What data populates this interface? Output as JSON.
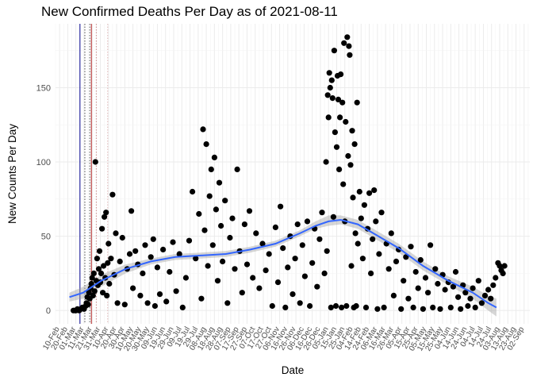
{
  "chart_data": {
    "type": "scatter",
    "title": "New Confirmed Deaths Per Day as of 2021-08-11",
    "xlabel": "Date",
    "ylabel": "New Counts Per Day",
    "x_range": [
      "2020-02-05",
      "2021-09-09"
    ],
    "ylim": [
      -9,
      193
    ],
    "y_ticks": [
      0,
      50,
      100,
      150
    ],
    "x_tick_labels": [
      "10-Feb",
      "20-Feb",
      "01-Mar",
      "11-Mar",
      "21-Mar",
      "31-Mar",
      "10-Apr",
      "20-Apr",
      "30-Apr",
      "10-May",
      "20-May",
      "30-May",
      "09-Jun",
      "19-Jun",
      "29-Jun",
      "09-Jul",
      "19-Jul",
      "29-Jul",
      "08-Aug",
      "18-Aug",
      "28-Aug",
      "07-Sep",
      "17-Sep",
      "27-Sep",
      "07-Oct",
      "17-Oct",
      "27-Oct",
      "06-Nov",
      "16-Nov",
      "26-Nov",
      "06-Dec",
      "16-Dec",
      "26-Dec",
      "05-Jan",
      "15-Jan",
      "25-Jan",
      "04-Feb",
      "14-Feb",
      "24-Feb",
      "06-Mar",
      "16-Mar",
      "26-Mar",
      "05-Apr",
      "15-Apr",
      "25-Apr",
      "05-May",
      "15-May",
      "25-May",
      "04-Jun",
      "14-Jun",
      "24-Jun",
      "04-Jul",
      "14-Jul",
      "24-Jul",
      "03-Aug",
      "13-Aug",
      "23-Aug",
      "02-Sep"
    ],
    "x_tick_start": "2020-02-10",
    "x_tick_step_days": 10,
    "reference_lines": [
      {
        "date": "2020-03-06",
        "color": "#00008b",
        "style": "solid"
      },
      {
        "date": "2020-03-12",
        "color": "#555555",
        "style": "dotted"
      },
      {
        "date": "2020-03-18",
        "color": "#555555",
        "style": "dotted"
      },
      {
        "date": "2020-03-20",
        "color": "#b22222",
        "style": "solid"
      },
      {
        "date": "2020-03-26",
        "color": "#c88a8a",
        "style": "dotted"
      },
      {
        "date": "2020-04-09",
        "color": "#e0b8b8",
        "style": "dotted"
      }
    ],
    "series": [
      {
        "type": "points",
        "color": "#000000",
        "points": [
          [
            "2020-02-27",
            0
          ],
          [
            "2020-02-29",
            0
          ],
          [
            "2020-03-01",
            0
          ],
          [
            "2020-03-03",
            1
          ],
          [
            "2020-03-05",
            0
          ],
          [
            "2020-03-07",
            1
          ],
          [
            "2020-03-09",
            2
          ],
          [
            "2020-03-11",
            1
          ],
          [
            "2020-03-13",
            3
          ],
          [
            "2020-03-14",
            5
          ],
          [
            "2020-03-15",
            9
          ],
          [
            "2020-03-16",
            4
          ],
          [
            "2020-03-17",
            12
          ],
          [
            "2020-03-18",
            8
          ],
          [
            "2020-03-19",
            15
          ],
          [
            "2020-03-20",
            18
          ],
          [
            "2020-03-21",
            22
          ],
          [
            "2020-03-22",
            10
          ],
          [
            "2020-03-23",
            25
          ],
          [
            "2020-03-24",
            13
          ],
          [
            "2020-03-25",
            100
          ],
          [
            "2020-03-26",
            20
          ],
          [
            "2020-03-27",
            35
          ],
          [
            "2020-03-28",
            17
          ],
          [
            "2020-03-29",
            28
          ],
          [
            "2020-03-30",
            40
          ],
          [
            "2020-03-31",
            19
          ],
          [
            "2020-04-01",
            25
          ],
          [
            "2020-04-02",
            55
          ],
          [
            "2020-04-03",
            12
          ],
          [
            "2020-04-04",
            30
          ],
          [
            "2020-04-05",
            63
          ],
          [
            "2020-04-06",
            22
          ],
          [
            "2020-04-07",
            66
          ],
          [
            "2020-04-08",
            10
          ],
          [
            "2020-04-09",
            32
          ],
          [
            "2020-04-10",
            45
          ],
          [
            "2020-04-11",
            18
          ],
          [
            "2020-04-13",
            35
          ],
          [
            "2020-04-15",
            78
          ],
          [
            "2020-04-17",
            24
          ],
          [
            "2020-04-19",
            52
          ],
          [
            "2020-04-21",
            5
          ],
          [
            "2020-04-24",
            33
          ],
          [
            "2020-04-27",
            49
          ],
          [
            "2020-04-30",
            4
          ],
          [
            "2020-05-03",
            28
          ],
          [
            "2020-05-06",
            38
          ],
          [
            "2020-05-08",
            67
          ],
          [
            "2020-05-10",
            15
          ],
          [
            "2020-05-13",
            40
          ],
          [
            "2020-05-16",
            31
          ],
          [
            "2020-05-19",
            10
          ],
          [
            "2020-05-22",
            25
          ],
          [
            "2020-05-25",
            44
          ],
          [
            "2020-05-28",
            5
          ],
          [
            "2020-06-01",
            36
          ],
          [
            "2020-06-04",
            48
          ],
          [
            "2020-06-06",
            3
          ],
          [
            "2020-06-09",
            29
          ],
          [
            "2020-06-12",
            11
          ],
          [
            "2020-06-16",
            41
          ],
          [
            "2020-06-20",
            6
          ],
          [
            "2020-06-24",
            26
          ],
          [
            "2020-06-28",
            46
          ],
          [
            "2020-07-02",
            13
          ],
          [
            "2020-07-06",
            38
          ],
          [
            "2020-07-10",
            2
          ],
          [
            "2020-07-14",
            22
          ],
          [
            "2020-07-18",
            47
          ],
          [
            "2020-07-22",
            80
          ],
          [
            "2020-07-26",
            35
          ],
          [
            "2020-07-30",
            65
          ],
          [
            "2020-08-02",
            8
          ],
          [
            "2020-08-04",
            122
          ],
          [
            "2020-08-06",
            54
          ],
          [
            "2020-08-08",
            112
          ],
          [
            "2020-08-10",
            30
          ],
          [
            "2020-08-12",
            77
          ],
          [
            "2020-08-14",
            95
          ],
          [
            "2020-08-16",
            44
          ],
          [
            "2020-08-18",
            103
          ],
          [
            "2020-08-20",
            68
          ],
          [
            "2020-08-22",
            20
          ],
          [
            "2020-08-24",
            86
          ],
          [
            "2020-08-26",
            57
          ],
          [
            "2020-08-28",
            33
          ],
          [
            "2020-08-31",
            74
          ],
          [
            "2020-09-03",
            5
          ],
          [
            "2020-09-06",
            49
          ],
          [
            "2020-09-09",
            62
          ],
          [
            "2020-09-12",
            28
          ],
          [
            "2020-09-15",
            95
          ],
          [
            "2020-09-18",
            40
          ],
          [
            "2020-09-21",
            12
          ],
          [
            "2020-09-24",
            58
          ],
          [
            "2020-09-27",
            31
          ],
          [
            "2020-09-30",
            67
          ],
          [
            "2020-10-04",
            22
          ],
          [
            "2020-10-08",
            52
          ],
          [
            "2020-10-12",
            15
          ],
          [
            "2020-10-16",
            45
          ],
          [
            "2020-10-20",
            27
          ],
          [
            "2020-10-24",
            38
          ],
          [
            "2020-10-28",
            3
          ],
          [
            "2020-11-01",
            56
          ],
          [
            "2020-11-04",
            19
          ],
          [
            "2020-11-07",
            70
          ],
          [
            "2020-11-10",
            42
          ],
          [
            "2020-11-13",
            2
          ],
          [
            "2020-11-16",
            29
          ],
          [
            "2020-11-19",
            50
          ],
          [
            "2020-11-22",
            11
          ],
          [
            "2020-11-25",
            35
          ],
          [
            "2020-11-28",
            58
          ],
          [
            "2020-12-01",
            5
          ],
          [
            "2020-12-04",
            44
          ],
          [
            "2020-12-07",
            23
          ],
          [
            "2020-12-10",
            60
          ],
          [
            "2020-12-13",
            3
          ],
          [
            "2020-12-16",
            32
          ],
          [
            "2020-12-19",
            55
          ],
          [
            "2020-12-22",
            16
          ],
          [
            "2020-12-25",
            48
          ],
          [
            "2020-12-28",
            66
          ],
          [
            "2020-12-31",
            25
          ],
          [
            "2021-01-02",
            100
          ],
          [
            "2021-01-03",
            40
          ],
          [
            "2021-01-04",
            145
          ],
          [
            "2021-01-05",
            130
          ],
          [
            "2021-01-06",
            160
          ],
          [
            "2021-01-07",
            150
          ],
          [
            "2021-01-08",
            2
          ],
          [
            "2021-01-09",
            155
          ],
          [
            "2021-01-10",
            143
          ],
          [
            "2021-01-11",
            63
          ],
          [
            "2021-01-12",
            175
          ],
          [
            "2021-01-13",
            120
          ],
          [
            "2021-01-14",
            3
          ],
          [
            "2021-01-15",
            110
          ],
          [
            "2021-01-16",
            158
          ],
          [
            "2021-01-17",
            142
          ],
          [
            "2021-01-18",
            95
          ],
          [
            "2021-01-19",
            130
          ],
          [
            "2021-01-20",
            159
          ],
          [
            "2021-01-21",
            2
          ],
          [
            "2021-01-22",
            140
          ],
          [
            "2021-01-23",
            85
          ],
          [
            "2021-01-24",
            180
          ],
          [
            "2021-01-25",
            60
          ],
          [
            "2021-01-26",
            127
          ],
          [
            "2021-01-27",
            3
          ],
          [
            "2021-01-28",
            184
          ],
          [
            "2021-01-29",
            104
          ],
          [
            "2021-01-30",
            178
          ],
          [
            "2021-01-31",
            172
          ],
          [
            "2021-02-01",
            98
          ],
          [
            "2021-02-02",
            30
          ],
          [
            "2021-02-03",
            121
          ],
          [
            "2021-02-04",
            76
          ],
          [
            "2021-02-05",
            2
          ],
          [
            "2021-02-06",
            112
          ],
          [
            "2021-02-07",
            52
          ],
          [
            "2021-02-08",
            3
          ],
          [
            "2021-02-09",
            140
          ],
          [
            "2021-02-10",
            45
          ],
          [
            "2021-02-12",
            80
          ],
          [
            "2021-02-14",
            62
          ],
          [
            "2021-02-16",
            35
          ],
          [
            "2021-02-18",
            71
          ],
          [
            "2021-02-20",
            2
          ],
          [
            "2021-02-22",
            55
          ],
          [
            "2021-02-24",
            79
          ],
          [
            "2021-02-26",
            25
          ],
          [
            "2021-02-28",
            48
          ],
          [
            "2021-03-02",
            81
          ],
          [
            "2021-03-04",
            60
          ],
          [
            "2021-03-06",
            1
          ],
          [
            "2021-03-08",
            38
          ],
          [
            "2021-03-11",
            66
          ],
          [
            "2021-03-14",
            2
          ],
          [
            "2021-03-17",
            45
          ],
          [
            "2021-03-20",
            28
          ],
          [
            "2021-03-23",
            52
          ],
          [
            "2021-03-26",
            10
          ],
          [
            "2021-03-29",
            33
          ],
          [
            "2021-04-01",
            41
          ],
          [
            "2021-04-04",
            1
          ],
          [
            "2021-04-07",
            20
          ],
          [
            "2021-04-10",
            36
          ],
          [
            "2021-04-13",
            8
          ],
          [
            "2021-04-16",
            43
          ],
          [
            "2021-04-19",
            2
          ],
          [
            "2021-04-22",
            26
          ],
          [
            "2021-04-25",
            15
          ],
          [
            "2021-04-28",
            34
          ],
          [
            "2021-05-01",
            1
          ],
          [
            "2021-05-04",
            22
          ],
          [
            "2021-05-07",
            12
          ],
          [
            "2021-05-10",
            44
          ],
          [
            "2021-05-13",
            2
          ],
          [
            "2021-05-16",
            28
          ],
          [
            "2021-05-19",
            18
          ],
          [
            "2021-05-22",
            1
          ],
          [
            "2021-05-25",
            24
          ],
          [
            "2021-05-28",
            14
          ],
          [
            "2021-06-01",
            19
          ],
          [
            "2021-06-04",
            2
          ],
          [
            "2021-06-07",
            16
          ],
          [
            "2021-06-10",
            26
          ],
          [
            "2021-06-13",
            9
          ],
          [
            "2021-06-16",
            1
          ],
          [
            "2021-06-19",
            17
          ],
          [
            "2021-06-22",
            12
          ],
          [
            "2021-06-25",
            3
          ],
          [
            "2021-06-28",
            8
          ],
          [
            "2021-07-01",
            15
          ],
          [
            "2021-07-04",
            2
          ],
          [
            "2021-07-08",
            20
          ],
          [
            "2021-07-12",
            5
          ],
          [
            "2021-07-16",
            10
          ],
          [
            "2021-07-20",
            14
          ],
          [
            "2021-07-23",
            8
          ],
          [
            "2021-07-26",
            17
          ],
          [
            "2021-07-29",
            22
          ],
          [
            "2021-08-01",
            32
          ],
          [
            "2021-08-03",
            30
          ],
          [
            "2021-08-05",
            27
          ],
          [
            "2021-08-07",
            25
          ],
          [
            "2021-08-09",
            30
          ]
        ]
      },
      {
        "type": "smooth",
        "color": "#3366ff",
        "band_color": "#999999",
        "points": [
          [
            "2020-02-22",
            9,
            6,
            12
          ],
          [
            "2020-03-10",
            12,
            8,
            16
          ],
          [
            "2020-04-01",
            20,
            16,
            24
          ],
          [
            "2020-05-01",
            28,
            25,
            31
          ],
          [
            "2020-06-01",
            33,
            31,
            35
          ],
          [
            "2020-07-01",
            36,
            34,
            38
          ],
          [
            "2020-08-01",
            37,
            35,
            39
          ],
          [
            "2020-09-01",
            38,
            36,
            40
          ],
          [
            "2020-10-01",
            41,
            39,
            43
          ],
          [
            "2020-11-01",
            45,
            43,
            47
          ],
          [
            "2020-12-01",
            52,
            50,
            54
          ],
          [
            "2020-12-20",
            57,
            55,
            60
          ],
          [
            "2021-01-05",
            60,
            57,
            64
          ],
          [
            "2021-01-20",
            61,
            58,
            64
          ],
          [
            "2021-02-10",
            58,
            55,
            61
          ],
          [
            "2021-03-01",
            52,
            49,
            55
          ],
          [
            "2021-04-01",
            42,
            39,
            45
          ],
          [
            "2021-05-01",
            30,
            27,
            33
          ],
          [
            "2021-06-01",
            20,
            17,
            23
          ],
          [
            "2021-07-01",
            12,
            8,
            16
          ],
          [
            "2021-07-20",
            5,
            0,
            10
          ],
          [
            "2021-07-30",
            2,
            -4,
            8
          ]
        ]
      }
    ]
  }
}
